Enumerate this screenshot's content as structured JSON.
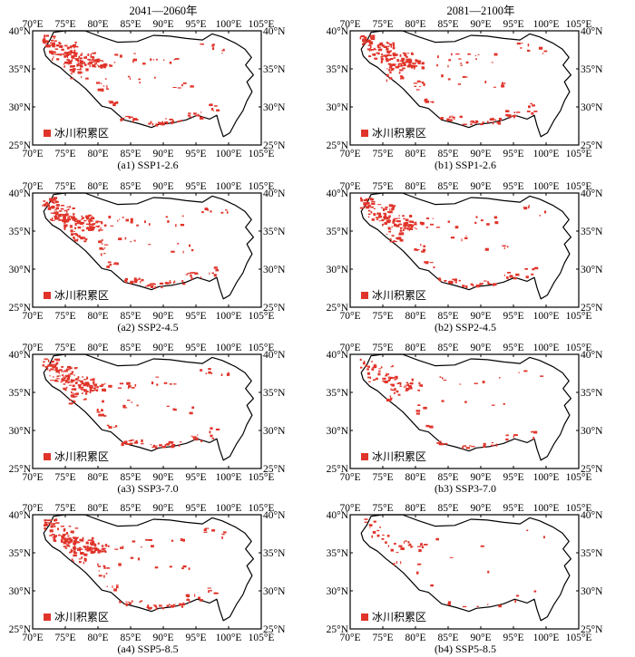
{
  "column_titles": [
    "2041—2060年",
    "2081—2100年"
  ],
  "legend_label": "冰川积累区",
  "colors": {
    "accumulation": "#e0342a",
    "boundary": "#000000",
    "frame": "#000000"
  },
  "x_ticks": [
    "70°E",
    "75°E",
    "80°E",
    "85°E",
    "90°E",
    "95°E",
    "100°E",
    "105°E"
  ],
  "y_ticks_left": [
    "40°N",
    "35°N",
    "30°N",
    "25°N"
  ],
  "y_ticks_right": [
    "40°N",
    "35°N",
    "30°N",
    "25°N"
  ],
  "panels": [
    {
      "id": "a1",
      "caption": "(a1) SSP1-2.6",
      "density": 1.0
    },
    {
      "id": "b1",
      "caption": "(b1) SSP1-2.6",
      "density": 0.95
    },
    {
      "id": "a2",
      "caption": "(a2) SSP2-4.5",
      "density": 0.95
    },
    {
      "id": "b2",
      "caption": "(b2) SSP2-4.5",
      "density": 0.8
    },
    {
      "id": "a3",
      "caption": "(a3) SSP3-7.0",
      "density": 0.9
    },
    {
      "id": "b3",
      "caption": "(b3) SSP3-7.0",
      "density": 0.45
    },
    {
      "id": "a4",
      "caption": "(a4) SSP5-8.5",
      "density": 0.85
    },
    {
      "id": "b4",
      "caption": "(b4) SSP5-8.5",
      "density": 0.2
    }
  ]
}
